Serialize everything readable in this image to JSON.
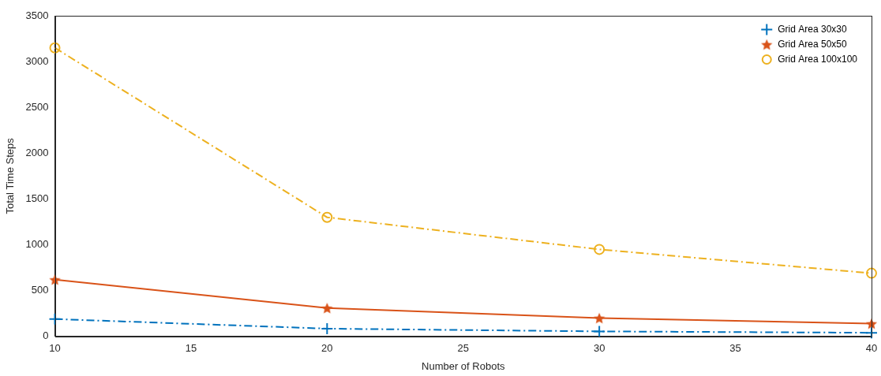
{
  "chart_data": {
    "type": "line",
    "x_label": "Number of Robots",
    "y_label": "Total Time Steps",
    "x": [
      10,
      20,
      30,
      40
    ],
    "series": [
      {
        "name": "Grid Area 30x30",
        "color": "#0072bd",
        "marker": "plus",
        "line_style": "dashdot",
        "values": [
          190,
          85,
          55,
          40
        ]
      },
      {
        "name": "Grid Area 50x50",
        "color": "#d95319",
        "marker": "star",
        "line_style": "solid",
        "values": [
          620,
          310,
          200,
          140
        ]
      },
      {
        "name": "Grid Area 100x100",
        "color": "#edb120",
        "marker": "circle",
        "line_style": "dashdot",
        "values": [
          3150,
          1300,
          950,
          690
        ]
      }
    ],
    "xlim": [
      10,
      40
    ],
    "xticks": [
      10,
      15,
      20,
      25,
      30,
      35,
      40
    ],
    "ylim": [
      0,
      3500
    ],
    "yticks": [
      0,
      500,
      1000,
      1500,
      2000,
      2500,
      3000,
      3500
    ],
    "grid": false,
    "legend": "upper right"
  }
}
